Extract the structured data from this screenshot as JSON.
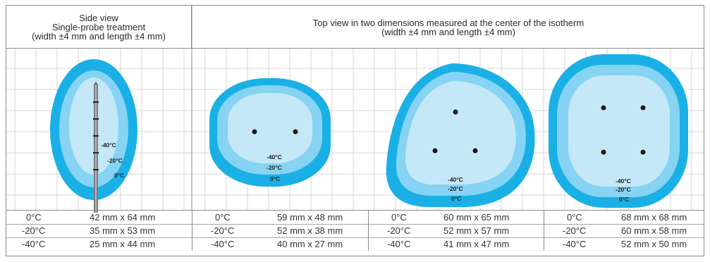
{
  "header": {
    "left": {
      "line1": "Side view",
      "line2": "Single-probe treatment",
      "line3": "(width ±4 mm and length ±4 mm)"
    },
    "right": {
      "line1": "Top view in two dimensions measured at the center of the isotherm",
      "line2": "(width ±4 mm and length ±4 mm)"
    }
  },
  "labels": {
    "minus40": "-40°C",
    "minus20": "-20°C",
    "zero": "0°C"
  },
  "tables": [
    {
      "id": "single-probe",
      "rows": [
        {
          "temp": "0°C",
          "dims": "42 mm x 64 mm"
        },
        {
          "temp": "-20°C",
          "dims": "35 mm x 53 mm"
        },
        {
          "temp": "-40°C",
          "dims": "25 mm x 44 mm"
        }
      ]
    },
    {
      "id": "two-probe",
      "rows": [
        {
          "temp": "0°C",
          "dims": "59 mm x 48 mm"
        },
        {
          "temp": "-20°C",
          "dims": "52 mm x 38 mm"
        },
        {
          "temp": "-40°C",
          "dims": "40 mm x 27 mm"
        }
      ]
    },
    {
      "id": "three-probe",
      "rows": [
        {
          "temp": "0°C",
          "dims": "60 mm x 65 mm"
        },
        {
          "temp": "-20°C",
          "dims": "52 mm x 57 mm"
        },
        {
          "temp": "-40°C",
          "dims": "41 mm x 47 mm"
        }
      ]
    },
    {
      "id": "four-probe",
      "rows": [
        {
          "temp": "0°C",
          "dims": "68 mm x 68 mm"
        },
        {
          "temp": "-20°C",
          "dims": "60 mm x 58 mm"
        },
        {
          "temp": "-40°C",
          "dims": "52 mm x 50 mm"
        }
      ]
    }
  ],
  "colors": {
    "zone_0c": "#1ab0e6",
    "zone_minus20c": "#86d3f3",
    "zone_minus40c": "#c4e8f8",
    "grid": "#d6d6d6",
    "probe_dot": "#1a1a1a",
    "border": "#8a8a8a"
  }
}
